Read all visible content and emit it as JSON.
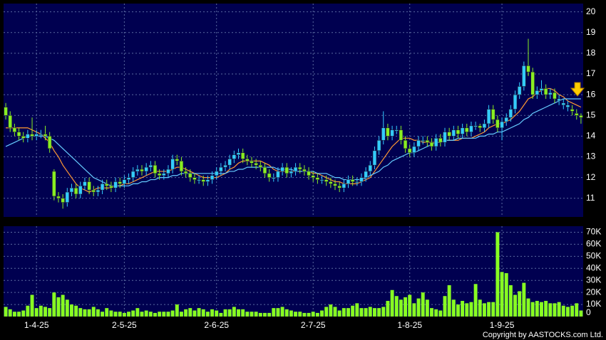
{
  "chart_data": {
    "type": "candlestick",
    "categories": [
      null,
      null,
      null,
      null,
      null,
      null,
      null,
      "1-4-25",
      null,
      null,
      null,
      null,
      null,
      null,
      null,
      null,
      null,
      null,
      null,
      null,
      null,
      null,
      null,
      null,
      null,
      null,
      null,
      "2-5-25",
      null,
      null,
      null,
      null,
      null,
      null,
      null,
      null,
      null,
      null,
      null,
      null,
      null,
      null,
      null,
      null,
      null,
      null,
      null,
      null,
      "2-6-25",
      null,
      null,
      null,
      null,
      null,
      null,
      null,
      null,
      null,
      null,
      null,
      null,
      null,
      null,
      null,
      null,
      null,
      null,
      null,
      null,
      null,
      "2-7-25",
      null,
      null,
      null,
      null,
      null,
      null,
      null,
      null,
      null,
      null,
      null,
      null,
      null,
      null,
      null,
      null,
      null,
      null,
      null,
      null,
      null,
      "1-8-25",
      null,
      null,
      null,
      null,
      null,
      null,
      null,
      null,
      null,
      null,
      null,
      null,
      null,
      null,
      null,
      null,
      null,
      null,
      null,
      null,
      "1-9-25",
      null,
      null,
      null,
      null,
      null,
      null,
      null,
      null,
      null,
      null,
      null,
      null,
      null,
      null,
      null,
      null,
      null,
      null
    ],
    "open": [
      15.4,
      15.0,
      14.4,
      14.2,
      14.0,
      13.9,
      14.1,
      14.0,
      14.1,
      14.1,
      14.0,
      12.3,
      11.1,
      11.0,
      10.8,
      11.3,
      11.5,
      11.2,
      11.6,
      11.8,
      11.4,
      11.3,
      11.4,
      11.7,
      11.6,
      11.5,
      11.8,
      11.7,
      11.9,
      12.0,
      12.3,
      12.4,
      12.3,
      12.5,
      12.6,
      12.2,
      12.1,
      12.2,
      12.4,
      12.9,
      12.8,
      12.3,
      12.2,
      12.0,
      11.9,
      11.9,
      11.8,
      11.9,
      12.1,
      12.3,
      12.5,
      12.6,
      12.9,
      13.1,
      13.2,
      12.9,
      12.8,
      12.7,
      12.6,
      12.5,
      12.2,
      12.0,
      12.0,
      12.3,
      12.5,
      12.2,
      12.3,
      12.5,
      12.4,
      12.3,
      12.1,
      12.0,
      11.9,
      11.9,
      11.8,
      11.7,
      11.6,
      11.5,
      11.7,
      11.9,
      11.8,
      11.8,
      12.0,
      12.3,
      12.6,
      13.3,
      13.8,
      14.4,
      14.0,
      14.3,
      14.3,
      13.8,
      13.4,
      13.2,
      13.5,
      13.8,
      13.8,
      13.7,
      13.5,
      13.9,
      13.7,
      14.2,
      14.0,
      14.3,
      14.1,
      14.4,
      14.2,
      14.5,
      14.5,
      14.4,
      14.6,
      15.3,
      14.8,
      14.4,
      14.7,
      14.9,
      15.3,
      16.0,
      16.4,
      17.4,
      17.1,
      16.0,
      16.2,
      16.3,
      16.0,
      16.1,
      15.7,
      15.5,
      15.4,
      15.3,
      15.1,
      15.0
    ],
    "high": [
      15.6,
      15.2,
      14.6,
      14.4,
      14.2,
      14.3,
      14.9,
      14.3,
      14.3,
      14.5,
      14.2,
      12.4,
      11.3,
      11.2,
      11.5,
      11.7,
      11.7,
      11.8,
      12.0,
      12.0,
      11.6,
      11.6,
      11.9,
      11.9,
      11.8,
      12.0,
      12.0,
      12.1,
      12.2,
      12.5,
      12.6,
      12.6,
      12.7,
      12.8,
      12.8,
      12.4,
      12.4,
      12.6,
      13.1,
      13.1,
      13.0,
      12.5,
      12.4,
      12.2,
      12.1,
      12.1,
      12.1,
      12.3,
      12.5,
      12.7,
      12.8,
      13.1,
      13.3,
      13.4,
      13.4,
      13.1,
      13.0,
      12.9,
      12.8,
      12.7,
      12.4,
      12.2,
      12.5,
      12.7,
      12.7,
      12.5,
      12.7,
      12.7,
      12.6,
      12.5,
      12.3,
      12.2,
      12.1,
      12.1,
      12.0,
      11.9,
      11.8,
      11.9,
      12.1,
      12.1,
      12.0,
      12.2,
      12.5,
      12.8,
      13.5,
      14.0,
      15.2,
      14.6,
      14.5,
      14.5,
      14.5,
      14.0,
      13.6,
      13.7,
      14.0,
      14.0,
      14.0,
      13.9,
      14.1,
      14.1,
      14.4,
      14.4,
      14.5,
      14.5,
      14.6,
      14.6,
      14.7,
      14.7,
      14.6,
      14.8,
      15.5,
      15.5,
      15.0,
      14.9,
      15.1,
      15.5,
      16.2,
      16.6,
      17.6,
      18.7,
      17.3,
      16.4,
      16.7,
      16.5,
      16.3,
      16.3,
      16.0,
      15.8,
      15.7,
      15.5,
      15.3,
      15.1
    ],
    "low": [
      14.8,
      14.2,
      14.0,
      13.8,
      13.7,
      13.7,
      13.8,
      13.8,
      13.9,
      13.8,
      13.2,
      10.9,
      10.8,
      10.5,
      10.6,
      11.1,
      11.0,
      11.0,
      11.4,
      11.2,
      11.1,
      11.1,
      11.2,
      11.4,
      11.3,
      11.3,
      11.5,
      11.5,
      11.7,
      11.8,
      12.1,
      12.1,
      12.1,
      12.3,
      12.0,
      11.9,
      11.9,
      12.0,
      12.2,
      12.6,
      12.1,
      12.0,
      11.8,
      11.7,
      11.7,
      11.6,
      11.6,
      11.7,
      11.9,
      12.1,
      12.3,
      12.4,
      12.7,
      12.9,
      12.7,
      12.6,
      12.5,
      12.4,
      12.3,
      12.0,
      11.8,
      11.8,
      11.8,
      12.1,
      12.0,
      12.0,
      12.1,
      12.2,
      12.1,
      11.9,
      11.8,
      11.7,
      11.7,
      11.6,
      11.5,
      11.4,
      11.3,
      11.3,
      11.5,
      11.6,
      11.6,
      11.6,
      11.8,
      12.1,
      12.4,
      13.1,
      13.6,
      13.8,
      13.8,
      14.1,
      13.6,
      13.2,
      13.0,
      13.0,
      13.3,
      13.6,
      13.5,
      13.3,
      13.3,
      13.5,
      13.5,
      13.8,
      13.8,
      13.9,
      13.9,
      14.0,
      14.0,
      14.3,
      14.2,
      14.2,
      14.4,
      14.6,
      14.2,
      13.8,
      14.5,
      14.7,
      15.1,
      15.8,
      16.2,
      16.9,
      15.8,
      15.8,
      16.0,
      15.8,
      15.8,
      15.6,
      15.5,
      15.3,
      15.2,
      15.0,
      14.8,
      14.6
    ],
    "close": [
      15.0,
      14.4,
      14.2,
      14.0,
      13.9,
      14.1,
      14.0,
      14.1,
      14.1,
      14.0,
      13.4,
      11.1,
      11.0,
      10.8,
      11.3,
      11.5,
      11.2,
      11.6,
      11.8,
      11.4,
      11.3,
      11.4,
      11.7,
      11.6,
      11.5,
      11.8,
      11.7,
      11.9,
      12.0,
      12.3,
      12.4,
      12.3,
      12.5,
      12.6,
      12.2,
      12.1,
      12.2,
      12.4,
      12.9,
      12.8,
      12.3,
      12.2,
      12.0,
      11.9,
      11.9,
      11.8,
      11.9,
      12.1,
      12.3,
      12.5,
      12.6,
      12.9,
      13.1,
      13.2,
      12.9,
      12.8,
      12.7,
      12.6,
      12.5,
      12.2,
      12.0,
      12.0,
      12.3,
      12.5,
      12.2,
      12.3,
      12.5,
      12.4,
      12.3,
      12.1,
      12.0,
      11.9,
      11.9,
      11.8,
      11.7,
      11.6,
      11.5,
      11.7,
      11.9,
      11.8,
      11.8,
      12.0,
      12.3,
      12.6,
      13.3,
      13.8,
      14.4,
      14.0,
      14.3,
      14.3,
      13.8,
      13.4,
      13.2,
      13.5,
      13.8,
      13.8,
      13.7,
      13.5,
      13.9,
      13.7,
      14.2,
      14.0,
      14.3,
      14.1,
      14.4,
      14.2,
      14.5,
      14.5,
      14.4,
      14.6,
      15.3,
      14.8,
      14.4,
      14.7,
      14.9,
      15.3,
      16.0,
      16.4,
      17.4,
      17.1,
      16.0,
      16.2,
      16.3,
      16.0,
      16.1,
      15.8,
      15.8,
      15.6,
      15.5,
      15.2,
      15.0,
      14.9
    ],
    "up_color": "#33ccff",
    "down_color": "#88ee22",
    "series": [
      {
        "color": "#ff9933",
        "values": [
          14.4,
          14.4,
          14.4,
          14.4,
          14.4,
          14.4,
          14.3,
          14.2,
          14.1,
          13.9,
          13.7,
          13.3,
          13.0,
          12.6,
          12.3,
          12.0,
          11.7,
          11.5,
          11.4,
          11.3,
          11.4,
          11.5,
          11.5,
          11.5,
          11.5,
          11.6,
          11.6,
          11.7,
          11.7,
          11.8,
          11.9,
          12.0,
          12.1,
          12.2,
          12.3,
          12.3,
          12.3,
          12.3,
          12.4,
          12.5,
          12.5,
          12.4,
          12.3,
          12.2,
          12.1,
          12.0,
          12.0,
          12.0,
          12.0,
          12.1,
          12.2,
          12.4,
          12.5,
          12.7,
          12.8,
          12.8,
          12.8,
          12.8,
          12.8,
          12.7,
          12.6,
          12.4,
          12.3,
          12.3,
          12.3,
          12.3,
          12.3,
          12.3,
          12.3,
          12.3,
          12.2,
          12.2,
          12.1,
          12.0,
          11.9,
          11.8,
          11.8,
          11.7,
          11.7,
          11.7,
          11.7,
          11.8,
          11.9,
          12.0,
          12.3,
          12.6,
          12.9,
          13.2,
          13.5,
          13.7,
          13.9,
          13.9,
          13.9,
          13.8,
          13.8,
          13.7,
          13.7,
          13.7,
          13.7,
          13.7,
          13.8,
          13.8,
          13.8,
          13.8,
          13.9,
          13.9,
          13.9,
          14.0,
          14.1,
          14.2,
          14.4,
          14.5,
          14.6,
          14.6,
          14.7,
          14.8,
          15.0,
          15.2,
          15.5,
          15.8,
          15.9,
          16.1,
          16.2,
          16.3,
          16.3,
          16.2,
          16.0,
          15.9,
          15.7,
          15.6,
          15.5,
          15.4
        ]
      },
      {
        "color": "#66ccff",
        "values": [
          13.5,
          13.6,
          13.7,
          13.8,
          13.9,
          14.0,
          14.0,
          14.0,
          14.0,
          14.0,
          13.9,
          13.8,
          13.6,
          13.4,
          13.2,
          13.0,
          12.8,
          12.6,
          12.4,
          12.2,
          12.0,
          11.9,
          11.8,
          11.7,
          11.6,
          11.6,
          11.6,
          11.6,
          11.6,
          11.7,
          11.7,
          11.8,
          11.8,
          11.9,
          11.9,
          12.0,
          12.0,
          12.0,
          12.1,
          12.1,
          12.2,
          12.2,
          12.2,
          12.2,
          12.2,
          12.2,
          12.2,
          12.2,
          12.2,
          12.2,
          12.2,
          12.3,
          12.3,
          12.4,
          12.4,
          12.5,
          12.5,
          12.5,
          12.5,
          12.5,
          12.5,
          12.5,
          12.4,
          12.4,
          12.4,
          12.4,
          12.3,
          12.3,
          12.3,
          12.3,
          12.3,
          12.2,
          12.2,
          12.2,
          12.1,
          12.0,
          12.0,
          11.9,
          11.9,
          11.9,
          11.9,
          11.9,
          12.0,
          12.1,
          12.2,
          12.3,
          12.5,
          12.6,
          12.8,
          12.9,
          13.0,
          13.1,
          13.2,
          13.2,
          13.3,
          13.4,
          13.5,
          13.6,
          13.7,
          13.7,
          13.8,
          13.8,
          13.8,
          13.9,
          13.9,
          13.9,
          13.9,
          13.9,
          14.0,
          14.0,
          14.1,
          14.1,
          14.2,
          14.2,
          14.3,
          14.4,
          14.5,
          14.6,
          14.8,
          14.9,
          15.1,
          15.2,
          15.3,
          15.4,
          15.5,
          15.6,
          15.7,
          15.8,
          15.8,
          15.8,
          15.8,
          15.8
        ]
      }
    ],
    "ylim": [
      10.1,
      20.4
    ],
    "yticks": [
      11,
      12,
      13,
      14,
      15,
      16,
      17,
      18,
      19,
      20
    ],
    "grid": true,
    "volume": {
      "color": "#88ff22",
      "values": [
        8000,
        6000,
        4000,
        4000,
        5000,
        9000,
        18000,
        7000,
        9000,
        8000,
        7000,
        20000,
        16000,
        18000,
        14000,
        10000,
        9000,
        7000,
        6000,
        6000,
        8000,
        6000,
        4000,
        7000,
        5000,
        4000,
        4000,
        3000,
        4000,
        5000,
        7000,
        4000,
        5000,
        4000,
        3000,
        4000,
        4000,
        4000,
        5000,
        10000,
        4000,
        6000,
        7000,
        5000,
        7000,
        6000,
        4000,
        6000,
        5000,
        3000,
        6000,
        6000,
        8000,
        6000,
        6000,
        4000,
        4000,
        4000,
        3000,
        3000,
        3000,
        7000,
        7000,
        8000,
        6000,
        5000,
        4000,
        4000,
        3000,
        3000,
        4000,
        3000,
        5000,
        8000,
        10000,
        8000,
        5000,
        7000,
        7000,
        9000,
        11000,
        7000,
        7000,
        8000,
        7000,
        7000,
        8000,
        13000,
        22000,
        17000,
        14000,
        16000,
        18000,
        11000,
        15000,
        20000,
        14000,
        7000,
        6000,
        5000,
        17000,
        26000,
        14000,
        10000,
        13000,
        11000,
        12000,
        27000,
        14000,
        11000,
        12000,
        12000,
        70000,
        37000,
        36000,
        26000,
        18000,
        21000,
        28000,
        15000,
        12000,
        13000,
        12000,
        13000,
        11000,
        11000,
        12000,
        9000,
        8000,
        9000,
        11000,
        5000
      ],
      "ylim": [
        0,
        75000
      ],
      "yticks": [
        0,
        {
          "value": 10000,
          "label": "10K"
        },
        {
          "value": 20000,
          "label": "20K"
        },
        {
          "value": 30000,
          "label": "30K"
        },
        {
          "value": 40000,
          "label": "40K"
        },
        {
          "value": 50000,
          "label": "50K"
        },
        {
          "value": 60000,
          "label": "60K"
        },
        {
          "value": 70000,
          "label": "70K"
        }
      ]
    },
    "copyright": "Copyright by AASTOCKS.com Ltd."
  }
}
